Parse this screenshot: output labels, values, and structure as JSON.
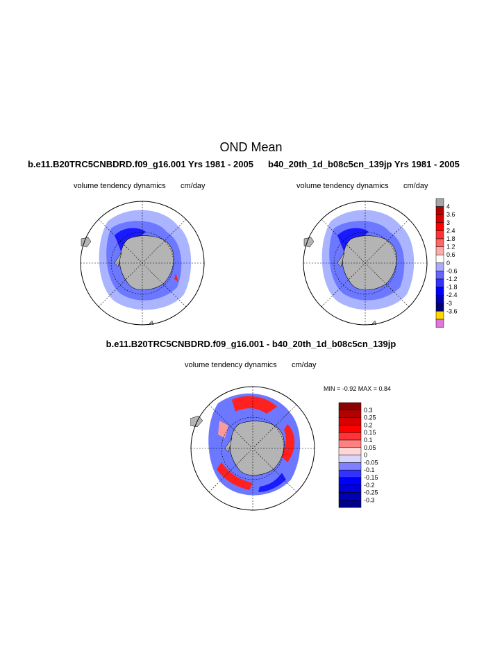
{
  "figure_title": "OND Mean",
  "panels": [
    {
      "case_title": "b.e11.B20TRC5CNBDRD.f09_g16.001  Yrs 1981 - 2005",
      "variable": "volume tendency dynamics",
      "units": "cm/day"
    },
    {
      "case_title": "b40_20th_1d_b08c5cn_139jp  Yrs 1981 - 2005",
      "variable": "volume tendency dynamics",
      "units": "cm/day"
    },
    {
      "case_title": "b.e11.B20TRC5CNBDRD.f09_g16.001 - b40_20th_1d_b08c5cn_139jp",
      "variable": "volume tendency dynamics",
      "units": "cm/day"
    }
  ],
  "diff_stats": {
    "text": "MIN =  -0.92 MAX =   0.84",
    "min": -0.92,
    "max": 0.84
  },
  "colorbar_main": {
    "labels": [
      "4",
      "3.6",
      "3",
      "2.4",
      "1.8",
      "1.2",
      "0.6",
      "0",
      "-0.6",
      "-1.2",
      "-1.8",
      "-2.4",
      "-3",
      "-3.6"
    ],
    "colors": [
      "#a6a6a6",
      "#b30000",
      "#d90000",
      "#ff0000",
      "#ff3333",
      "#ff6666",
      "#ffaaaa",
      "#ffffff",
      "#aaaaff",
      "#6666ff",
      "#3333ff",
      "#0000ff",
      "#0000b3",
      "#00006f",
      "#ffd700",
      "#dd77dd"
    ]
  },
  "colorbar_diff": {
    "labels": [
      "0.3",
      "0.25",
      "0.2",
      "0.15",
      "0.1",
      "0.05",
      "0",
      "-0.05",
      "-0.1",
      "-0.15",
      "-0.2",
      "-0.25",
      "-0.3"
    ],
    "colors": [
      "#8b0000",
      "#b30000",
      "#d90000",
      "#ff0000",
      "#ff3333",
      "#ff8080",
      "#ffd6d6",
      "#d6d6ff",
      "#8080ff",
      "#3333ff",
      "#0000ff",
      "#0000d9",
      "#0000b3",
      "#00008b"
    ]
  },
  "map_colors": {
    "land": "#b4b4b4",
    "light_blue": "#aab4ff",
    "mid_blue": "#6c78ff",
    "dark_blue": "#1a1aff",
    "red": "#ff2020",
    "light_red": "#ff9a9a"
  }
}
